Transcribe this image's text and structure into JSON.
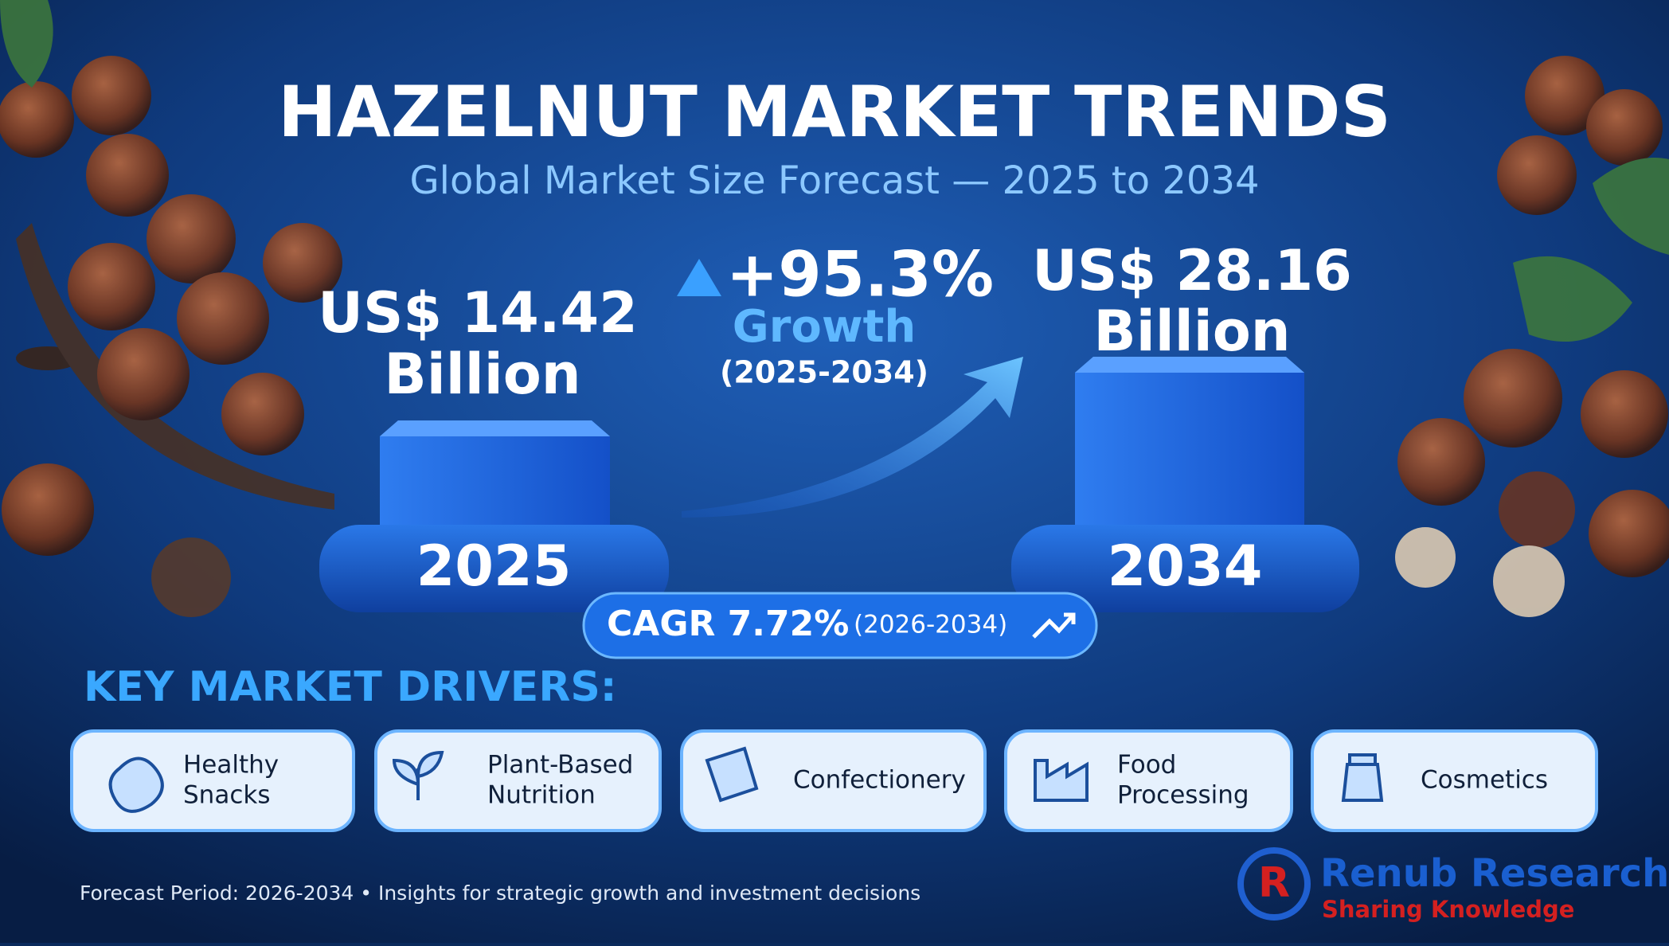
{
  "header": {
    "title": "HAZELNUT MARKET TRENDS",
    "subtitle": "Global Market Size Forecast — 2025 to 2034"
  },
  "forecast": {
    "start": {
      "amount": "US$ 14.42",
      "unit": "Billion",
      "year": "2025"
    },
    "end": {
      "amount": "US$ 28.16",
      "unit": "Billion",
      "year": "2034"
    },
    "growth": {
      "value": "+95.3%",
      "label": "Growth",
      "period": "(2025-2034)"
    },
    "cagr": {
      "label": "CAGR 7.72%",
      "period": "(2026-2034)"
    }
  },
  "drivers": {
    "title": "KEY MARKET DRIVERS:",
    "items": [
      [
        "Healthy",
        "Snacks"
      ],
      [
        "Plant-Based",
        "Nutrition"
      ],
      [
        "Confectionery"
      ],
      [
        "Food",
        "Processing"
      ],
      [
        "Cosmetics"
      ]
    ]
  },
  "footer": {
    "note": "Forecast Period: 2026-2034  •  Insights for strategic growth and investment decisions",
    "brand": "Renub Research",
    "tagline": "Sharing Knowledge"
  }
}
